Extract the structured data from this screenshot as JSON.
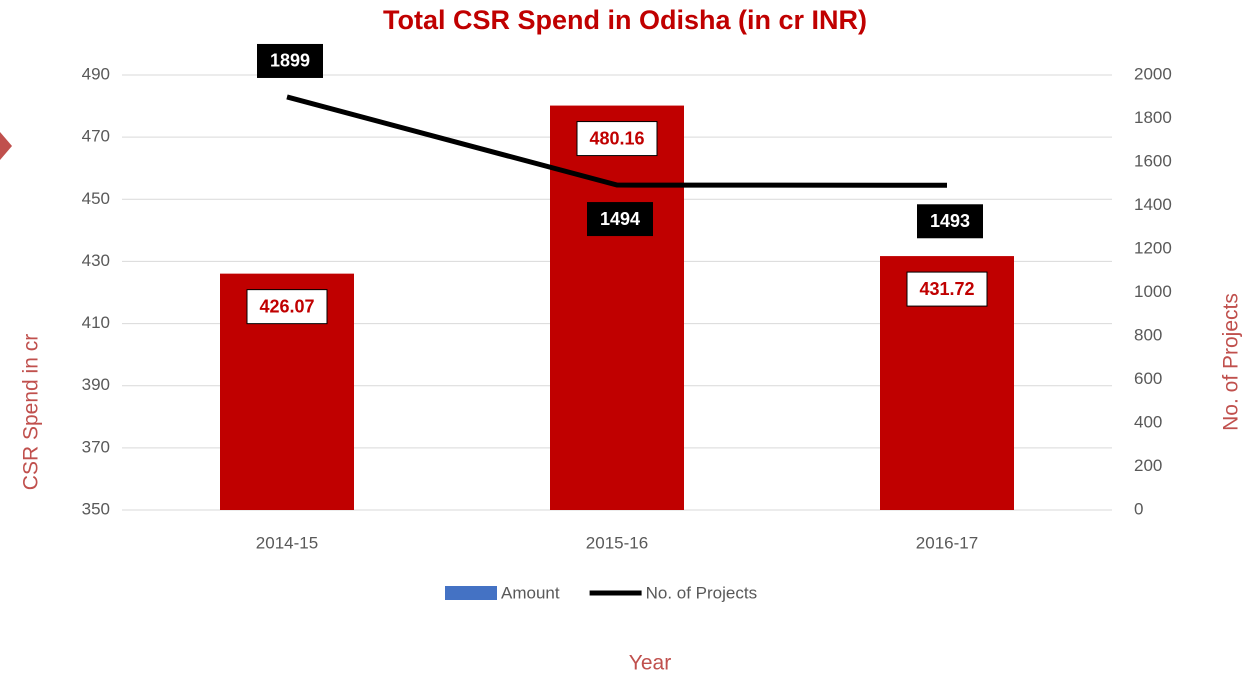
{
  "chart_data": {
    "type": "bar",
    "title": "Total CSR Spend in Odisha (in cr INR)",
    "x_label": "Year",
    "y_label": "CSR Spend in cr",
    "y2_label": "No. of Projects",
    "categories": [
      "2014-15",
      "2015-16",
      "2016-17"
    ],
    "series": [
      {
        "name": "Amount",
        "type": "bar",
        "color": "#c00000",
        "legend_color": "#4472c4",
        "values": [
          426.07,
          480.16,
          431.72
        ]
      },
      {
        "name": "No. of Projects",
        "type": "line",
        "axis": "y2",
        "color": "#000000",
        "values": [
          1899,
          1494,
          1493
        ]
      }
    ],
    "ylim": [
      350,
      490
    ],
    "yticks": [
      350,
      370,
      390,
      410,
      430,
      450,
      470,
      490
    ],
    "y2lim": [
      0,
      2000
    ],
    "y2ticks": [
      0,
      200,
      400,
      600,
      800,
      1000,
      1200,
      1400,
      1600,
      1800,
      2000
    ],
    "grid": true,
    "legend": "bottom"
  }
}
